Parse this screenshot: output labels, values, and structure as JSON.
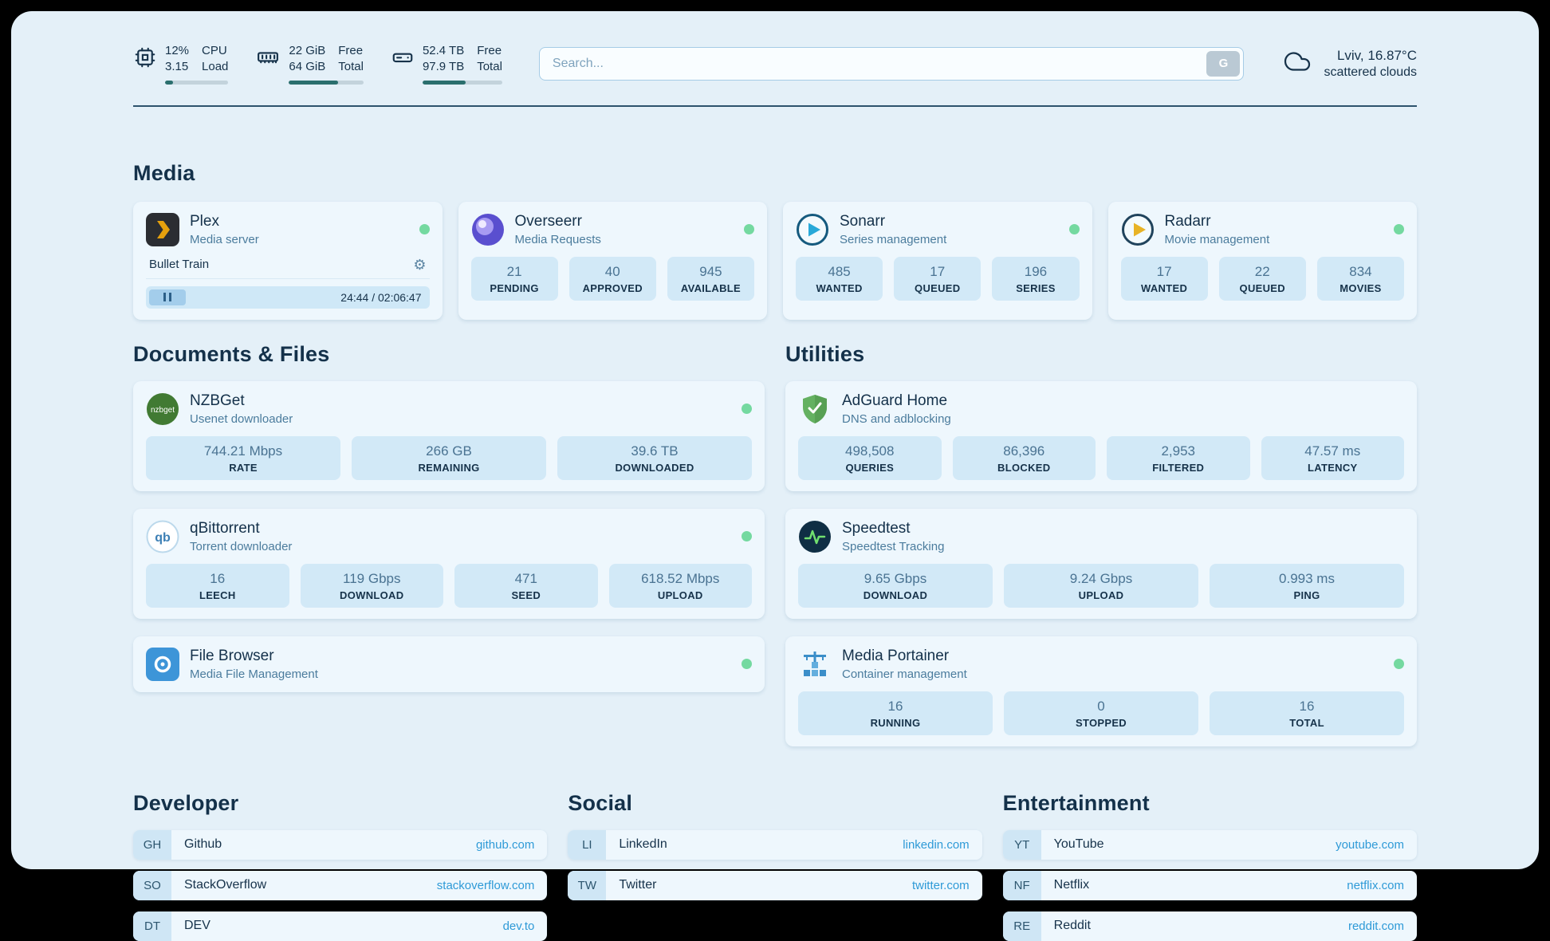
{
  "icons": {
    "gear": "⚙"
  },
  "topbar": {
    "cpu": {
      "value_top": "12%",
      "value_bottom": "3.15",
      "label_top": "CPU",
      "label_bottom": "Load",
      "bar_percent": 12
    },
    "ram": {
      "value_top": "22 GiB",
      "value_bottom": "64 GiB",
      "label_top": "Free",
      "label_bottom": "Total",
      "bar_percent": 66
    },
    "disk": {
      "value_top": "52.4 TB",
      "value_bottom": "97.9 TB",
      "label_top": "Free",
      "label_bottom": "Total",
      "bar_percent": 54
    },
    "search": {
      "placeholder": "Search...",
      "button_label": "G"
    },
    "weather": {
      "location": "Lviv, 16.87°C",
      "condition": "scattered clouds"
    }
  },
  "sections": {
    "media": {
      "title": "Media"
    },
    "documents": {
      "title": "Documents & Files"
    },
    "utilities": {
      "title": "Utilities"
    }
  },
  "services": {
    "plex": {
      "name": "Plex",
      "desc": "Media server",
      "now_playing": "Bullet Train",
      "time": "24:44 / 02:06:47"
    },
    "overseerr": {
      "name": "Overseerr",
      "desc": "Media Requests",
      "stats": [
        {
          "value": "21",
          "label": "PENDING"
        },
        {
          "value": "40",
          "label": "APPROVED"
        },
        {
          "value": "945",
          "label": "AVAILABLE"
        }
      ]
    },
    "sonarr": {
      "name": "Sonarr",
      "desc": "Series management",
      "stats": [
        {
          "value": "485",
          "label": "WANTED"
        },
        {
          "value": "17",
          "label": "QUEUED"
        },
        {
          "value": "196",
          "label": "SERIES"
        }
      ]
    },
    "radarr": {
      "name": "Radarr",
      "desc": "Movie management",
      "stats": [
        {
          "value": "17",
          "label": "WANTED"
        },
        {
          "value": "22",
          "label": "QUEUED"
        },
        {
          "value": "834",
          "label": "MOVIES"
        }
      ]
    },
    "nzbget": {
      "name": "NZBGet",
      "desc": "Usenet downloader",
      "stats": [
        {
          "value": "744.21 Mbps",
          "label": "RATE"
        },
        {
          "value": "266 GB",
          "label": "REMAINING"
        },
        {
          "value": "39.6 TB",
          "label": "DOWNLOADED"
        }
      ]
    },
    "qbittorrent": {
      "name": "qBittorrent",
      "desc": "Torrent downloader",
      "stats": [
        {
          "value": "16",
          "label": "LEECH"
        },
        {
          "value": "119 Gbps",
          "label": "DOWNLOAD"
        },
        {
          "value": "471",
          "label": "SEED"
        },
        {
          "value": "618.52 Mbps",
          "label": "UPLOAD"
        }
      ]
    },
    "filebrowser": {
      "name": "File Browser",
      "desc": "Media File Management"
    },
    "adguard": {
      "name": "AdGuard Home",
      "desc": "DNS and adblocking",
      "stats": [
        {
          "value": "498,508",
          "label": "QUERIES"
        },
        {
          "value": "86,396",
          "label": "BLOCKED"
        },
        {
          "value": "2,953",
          "label": "FILTERED"
        },
        {
          "value": "47.57 ms",
          "label": "LATENCY"
        }
      ]
    },
    "speedtest": {
      "name": "Speedtest",
      "desc": "Speedtest Tracking",
      "stats": [
        {
          "value": "9.65 Gbps",
          "label": "DOWNLOAD"
        },
        {
          "value": "9.24 Gbps",
          "label": "UPLOAD"
        },
        {
          "value": "0.993 ms",
          "label": "PING"
        }
      ]
    },
    "portainer": {
      "name": "Media Portainer",
      "desc": "Container management",
      "stats": [
        {
          "value": "16",
          "label": "RUNNING"
        },
        {
          "value": "0",
          "label": "STOPPED"
        },
        {
          "value": "16",
          "label": "TOTAL"
        }
      ]
    }
  },
  "bookmarks": {
    "developer": {
      "title": "Developer",
      "items": [
        {
          "abbr": "GH",
          "name": "Github",
          "url": "github.com"
        },
        {
          "abbr": "SO",
          "name": "StackOverflow",
          "url": "stackoverflow.com"
        },
        {
          "abbr": "DT",
          "name": "DEV",
          "url": "dev.to"
        }
      ]
    },
    "social": {
      "title": "Social",
      "items": [
        {
          "abbr": "LI",
          "name": "LinkedIn",
          "url": "linkedin.com"
        },
        {
          "abbr": "TW",
          "name": "Twitter",
          "url": "twitter.com"
        }
      ]
    },
    "entertainment": {
      "title": "Entertainment",
      "items": [
        {
          "abbr": "YT",
          "name": "YouTube",
          "url": "youtube.com"
        },
        {
          "abbr": "NF",
          "name": "Netflix",
          "url": "netflix.com"
        },
        {
          "abbr": "RE",
          "name": "Reddit",
          "url": "reddit.com"
        }
      ]
    }
  },
  "colors": {
    "accent": "#2e9ad7",
    "status_online": "#74d9a0"
  }
}
